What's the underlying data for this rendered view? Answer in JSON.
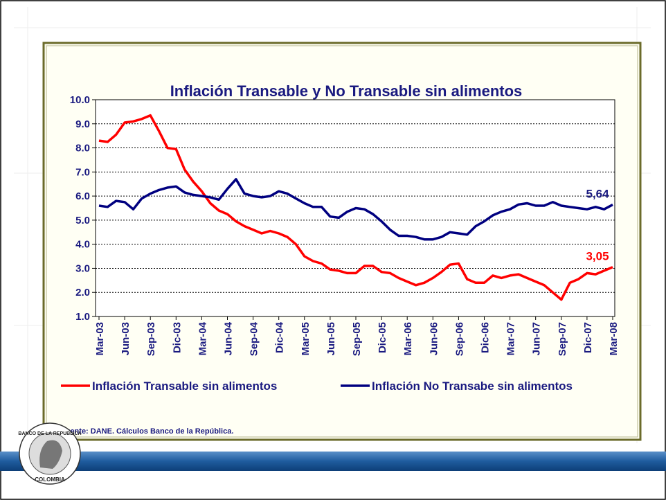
{
  "chart_data": {
    "type": "line",
    "title": "Inflación Transable y No Transable sin alimentos",
    "source": "Fuente: DANE. Cálculos Banco de la República.",
    "logo_texts": [
      "BANCO DE LA REPUBLICA",
      "COLOMBIA"
    ],
    "categories": [
      "Mar-03",
      null,
      null,
      "Jun-03",
      null,
      null,
      "Sep-03",
      null,
      null,
      "Dic-03",
      null,
      null,
      "Mar-04",
      null,
      null,
      "Jun-04",
      null,
      null,
      "Sep-04",
      null,
      null,
      "Dic-04",
      null,
      null,
      "Mar-05",
      null,
      null,
      "Jun-05",
      null,
      null,
      "Sep-05",
      null,
      null,
      "Dic-05",
      null,
      null,
      "Mar-06",
      null,
      null,
      "Jun-06",
      null,
      null,
      "Sep-06",
      null,
      null,
      "Dic-06",
      null,
      null,
      "Mar-07",
      null,
      null,
      "Jun-07",
      null,
      null,
      "Sep-07",
      null,
      null,
      "Dic-07",
      null,
      null,
      "Mar-08"
    ],
    "ylim": [
      1,
      10
    ],
    "yticks": [
      {
        "value": 1,
        "label": "1.0"
      },
      {
        "value": 2,
        "label": "2.0"
      },
      {
        "value": 3,
        "label": "3.0"
      },
      {
        "value": 4,
        "label": "4.0"
      },
      {
        "value": 5,
        "label": "5.0"
      },
      {
        "value": 6,
        "label": "6.0"
      },
      {
        "value": 7,
        "label": "7.0"
      },
      {
        "value": 8,
        "label": "8.0"
      },
      {
        "value": 9,
        "label": "9.0"
      },
      {
        "value": 10,
        "label": "10.0"
      }
    ],
    "grid": true,
    "legend": "bottom",
    "series": [
      {
        "name": "Inflación Transable sin alimentos",
        "color": "#ff0000",
        "values": [
          8.3,
          8.25,
          8.55,
          9.05,
          9.1,
          9.2,
          9.35,
          8.7,
          8.0,
          7.95,
          7.1,
          6.6,
          6.2,
          5.7,
          5.4,
          5.25,
          4.95,
          4.75,
          4.6,
          4.45,
          4.55,
          4.45,
          4.3,
          4.0,
          3.5,
          3.3,
          3.2,
          2.95,
          2.9,
          2.8,
          2.8,
          3.1,
          3.1,
          2.85,
          2.8,
          2.6,
          2.45,
          2.3,
          2.4,
          2.6,
          2.85,
          3.15,
          3.2,
          2.55,
          2.4,
          2.4,
          2.7,
          2.6,
          2.7,
          2.75,
          2.6,
          2.45,
          2.3,
          2.0,
          1.7,
          2.4,
          2.55,
          2.8,
          2.75,
          2.9,
          3.05
        ],
        "value_labels": [
          null,
          null,
          null,
          null,
          null,
          null,
          null,
          null,
          null,
          null,
          null,
          null,
          null,
          null,
          null,
          null,
          null,
          null,
          null,
          null,
          null,
          null,
          null,
          null,
          null,
          null,
          null,
          null,
          null,
          null,
          null,
          null,
          null,
          null,
          null,
          null,
          null,
          null,
          null,
          null,
          null,
          null,
          null,
          null,
          null,
          null,
          null,
          null,
          null,
          null,
          null,
          null,
          null,
          null,
          null,
          null,
          null,
          null,
          null,
          null,
          "3,05"
        ]
      },
      {
        "name": "Inflación No Transabe sin alimentos",
        "color": "#000080",
        "values": [
          5.6,
          5.55,
          5.8,
          5.75,
          5.45,
          5.9,
          6.1,
          6.25,
          6.35,
          6.4,
          6.15,
          6.05,
          6.0,
          5.95,
          5.85,
          6.3,
          6.7,
          6.1,
          6.0,
          5.95,
          6.0,
          6.2,
          6.1,
          5.9,
          5.7,
          5.55,
          5.55,
          5.15,
          5.1,
          5.35,
          5.5,
          5.45,
          5.25,
          4.95,
          4.6,
          4.35,
          4.35,
          4.3,
          4.2,
          4.2,
          4.3,
          4.5,
          4.45,
          4.4,
          4.75,
          4.95,
          5.2,
          5.35,
          5.45,
          5.65,
          5.7,
          5.6,
          5.6,
          5.75,
          5.6,
          5.55,
          5.5,
          5.45,
          5.55,
          5.45,
          5.64
        ],
        "value_labels": [
          null,
          null,
          null,
          null,
          null,
          null,
          null,
          null,
          null,
          null,
          null,
          null,
          null,
          null,
          null,
          null,
          null,
          null,
          null,
          null,
          null,
          null,
          null,
          null,
          null,
          null,
          null,
          null,
          null,
          null,
          null,
          null,
          null,
          null,
          null,
          null,
          null,
          null,
          null,
          null,
          null,
          null,
          null,
          null,
          null,
          null,
          null,
          null,
          null,
          null,
          null,
          null,
          null,
          null,
          null,
          null,
          null,
          null,
          null,
          null,
          "5,64"
        ]
      }
    ]
  }
}
